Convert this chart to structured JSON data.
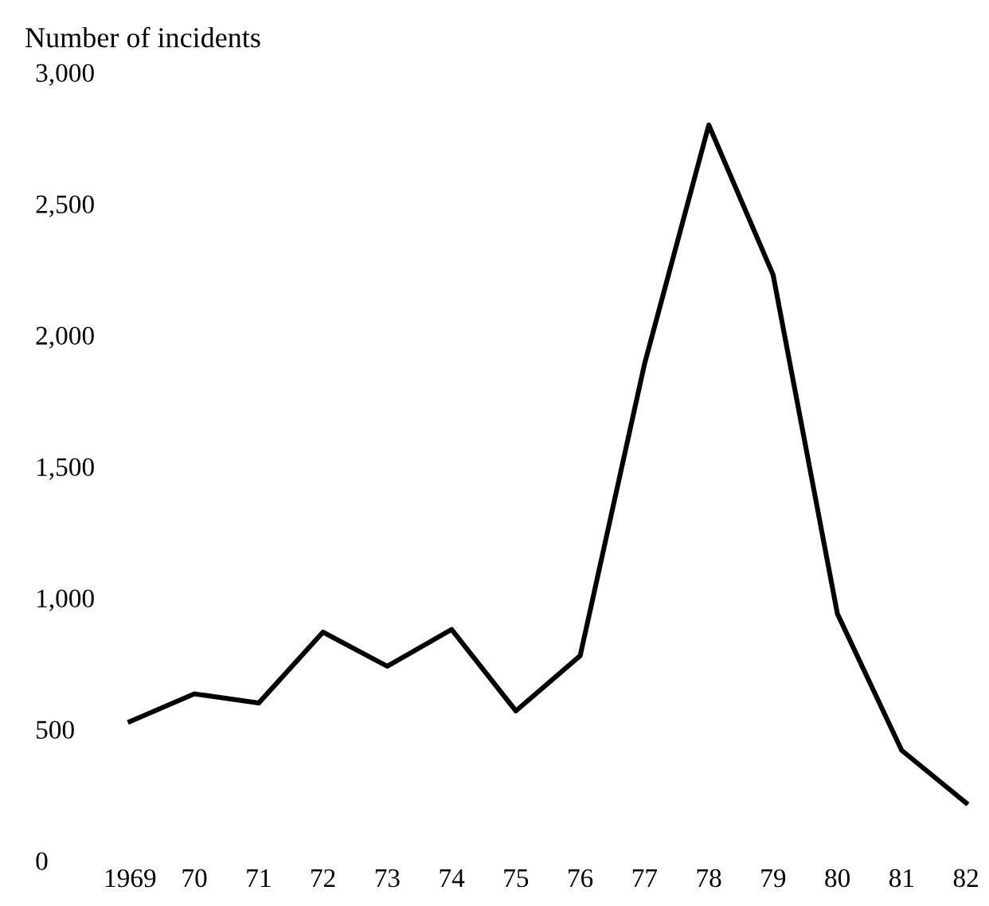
{
  "chart_data": {
    "type": "line",
    "title": "Number of incidents",
    "categories": [
      "1969",
      "70",
      "71",
      "72",
      "73",
      "74",
      "75",
      "76",
      "77",
      "78",
      "79",
      "80",
      "81",
      "82"
    ],
    "series": [
      {
        "color": "#000000",
        "values": [
          530,
          635,
          600,
          870,
          740,
          880,
          570,
          780,
          1890,
          2800,
          2230,
          940,
          420,
          220
        ]
      }
    ],
    "ylim": [
      0,
      3000
    ],
    "yticks": [
      {
        "value": 0,
        "label": "0"
      },
      {
        "value": 500,
        "label": "500"
      },
      {
        "value": 1000,
        "label": "1,000"
      },
      {
        "value": 1500,
        "label": "1,500"
      },
      {
        "value": 2000,
        "label": "2,000"
      },
      {
        "value": 2500,
        "label": "2,500"
      },
      {
        "value": 3000,
        "label": "3,000"
      }
    ],
    "grid": false,
    "legend": false,
    "marker": "none",
    "line_style": "solid"
  }
}
